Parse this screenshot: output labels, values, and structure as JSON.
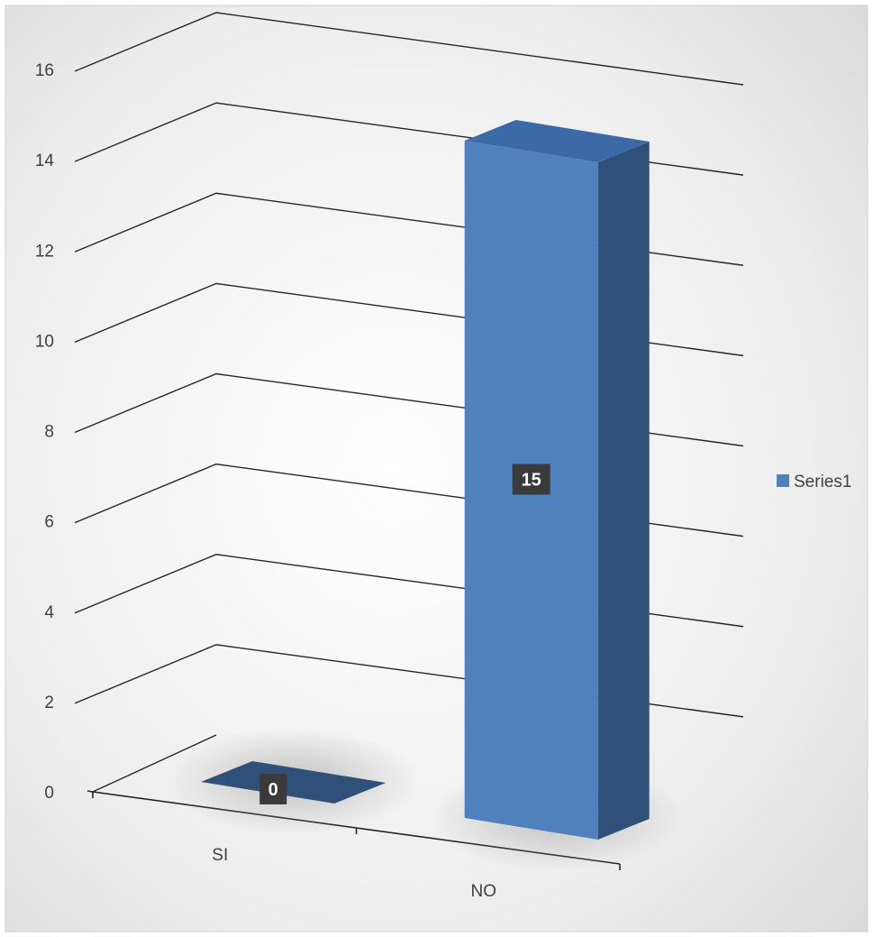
{
  "chart_data": {
    "type": "bar",
    "style": "3d-column",
    "categories": [
      "SI",
      "NO"
    ],
    "series": [
      {
        "name": "Series1",
        "values": [
          0,
          15
        ],
        "color": "#4f81bd",
        "top_color": "#3c6aa6",
        "side_color": "#2e5079"
      }
    ],
    "ylim": [
      0,
      16
    ],
    "yticks": [
      0,
      2,
      4,
      6,
      8,
      10,
      12,
      14,
      16
    ],
    "grid": true,
    "legend": "right",
    "data_labels": true,
    "title": "",
    "xlabel": "",
    "ylabel": ""
  },
  "colors": {
    "background_center": "#ffffff",
    "background_edge": "#d9d9d9",
    "gridline": "#262626",
    "axis_text": "#404040",
    "label_box": "#3a3a3a"
  }
}
